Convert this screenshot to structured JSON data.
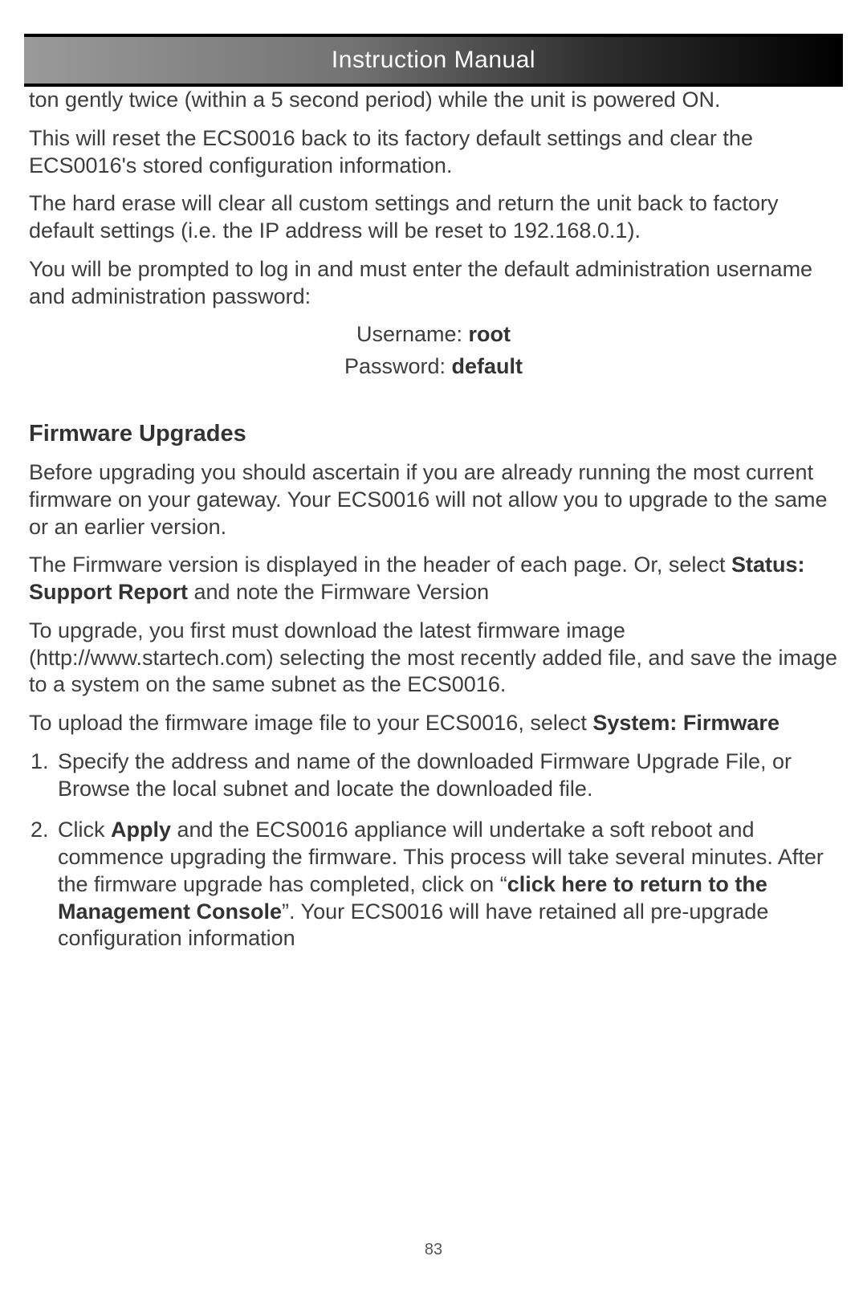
{
  "header": {
    "title": "Instruction Manual"
  },
  "body": {
    "p1": "ton gently twice (within a 5 second period) while the unit is powered ON.",
    "p2": "This will reset the ECS0016 back to its factory default settings and clear the ECS0016's stored configuration information.",
    "p3": "The hard erase will clear all custom settings and return the unit back to factory default settings (i.e. the IP address will be reset to 192.168.0.1).",
    "p4": "You will be prompted to log in and must enter the default administration username and administration password:",
    "creds": {
      "user_label": "Username: ",
      "user_value": "root",
      "pass_label": "Password: ",
      "pass_value": "default"
    },
    "section_title": "Firmware Upgrades",
    "p5": "Before upgrading you should ascertain if you are already running the most current firmware on your gateway. Your ECS0016 will not allow you to upgrade to the same or an earlier version.",
    "p6a": "The Firmware version is displayed in the header of each page. Or, select ",
    "p6b": "Status: Support Report",
    "p6c": " and note the Firmware Version",
    "p7": "To upgrade, you first must download the latest firmware image (http://www.startech.com) selecting the most recently added file, and save the image to a system on the same subnet as the ECS0016.",
    "p8a": "To upload the firmware image file to your ECS0016, select ",
    "p8b": "System: Firmware",
    "steps": {
      "s1": "Specify the address and name of the downloaded Firmware Upgrade File, or Browse the local subnet and locate the downloaded file.",
      "s2a": "Click ",
      "s2b": "Apply",
      "s2c": " and the ECS0016 appliance will undertake a soft reboot and commence upgrading the firmware. This process will take several minutes.  After the firmware upgrade has completed, click on “",
      "s2d": "click here to return to the Management Console",
      "s2e": "”. Your ECS0016 will have retained all pre-upgrade configuration information"
    }
  },
  "page_number": "83"
}
